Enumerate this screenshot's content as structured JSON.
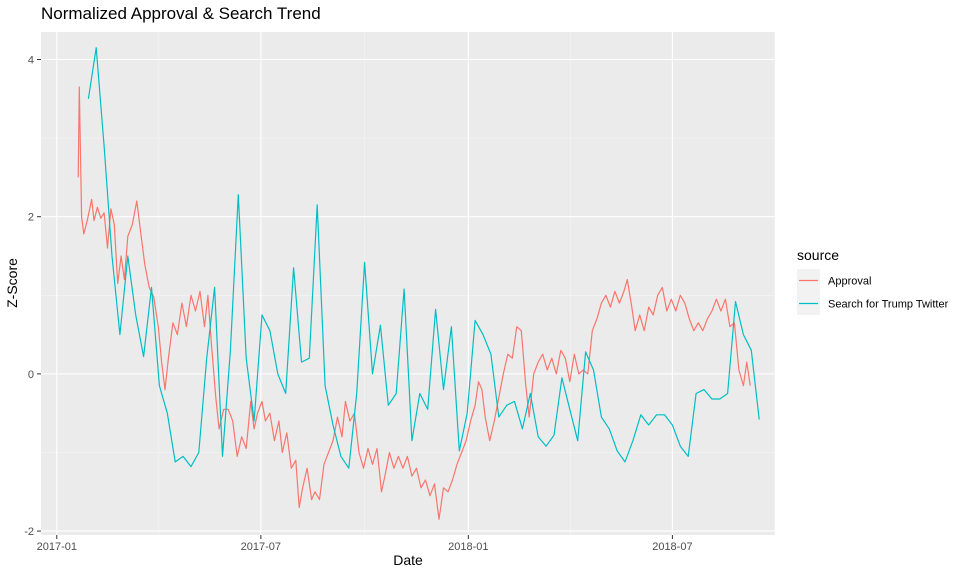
{
  "chart_data": {
    "type": "line",
    "title": "Normalized Approval & Search Trend",
    "xlabel": "Date",
    "ylabel": "Z-Score",
    "xlim": [
      "2016-12-18",
      "2018-09-30"
    ],
    "ylim": [
      -2.05,
      4.35
    ],
    "x_ticks": [
      {
        "date": "2017-01-01",
        "label": "2017-01"
      },
      {
        "date": "2017-07-01",
        "label": "2017-07"
      },
      {
        "date": "2018-01-01",
        "label": "2018-01"
      },
      {
        "date": "2018-07-01",
        "label": "2018-07"
      }
    ],
    "y_ticks": [
      -2,
      0,
      2,
      4
    ],
    "grid": true,
    "legend": {
      "title": "source",
      "position": "right"
    },
    "series": [
      {
        "name": "Approval",
        "color": "#F8766D",
        "points": [
          [
            "2017-01-20",
            2.5
          ],
          [
            "2017-01-21",
            3.65
          ],
          [
            "2017-01-23",
            2.0
          ],
          [
            "2017-01-25",
            1.78
          ],
          [
            "2017-01-28",
            1.95
          ],
          [
            "2017-02-01",
            2.22
          ],
          [
            "2017-02-03",
            1.95
          ],
          [
            "2017-02-06",
            2.12
          ],
          [
            "2017-02-09",
            1.98
          ],
          [
            "2017-02-12",
            2.05
          ],
          [
            "2017-02-15",
            1.6
          ],
          [
            "2017-02-18",
            2.1
          ],
          [
            "2017-02-21",
            1.9
          ],
          [
            "2017-02-24",
            1.15
          ],
          [
            "2017-02-27",
            1.5
          ],
          [
            "2017-03-02",
            1.2
          ],
          [
            "2017-03-05",
            1.75
          ],
          [
            "2017-03-09",
            1.9
          ],
          [
            "2017-03-13",
            2.2
          ],
          [
            "2017-03-16",
            1.85
          ],
          [
            "2017-03-20",
            1.4
          ],
          [
            "2017-03-24",
            1.1
          ],
          [
            "2017-03-28",
            0.98
          ],
          [
            "2017-04-01",
            0.6
          ],
          [
            "2017-04-04",
            0.15
          ],
          [
            "2017-04-07",
            -0.2
          ],
          [
            "2017-04-10",
            0.2
          ],
          [
            "2017-04-14",
            0.65
          ],
          [
            "2017-04-18",
            0.5
          ],
          [
            "2017-04-22",
            0.9
          ],
          [
            "2017-04-26",
            0.6
          ],
          [
            "2017-04-30",
            1.0
          ],
          [
            "2017-05-04",
            0.8
          ],
          [
            "2017-05-08",
            1.05
          ],
          [
            "2017-05-12",
            0.6
          ],
          [
            "2017-05-15",
            1.0
          ],
          [
            "2017-05-18",
            0.4
          ],
          [
            "2017-05-22",
            -0.3
          ],
          [
            "2017-05-25",
            -0.7
          ],
          [
            "2017-05-29",
            -0.45
          ],
          [
            "2017-06-02",
            -0.45
          ],
          [
            "2017-06-06",
            -0.6
          ],
          [
            "2017-06-10",
            -1.05
          ],
          [
            "2017-06-14",
            -0.8
          ],
          [
            "2017-06-18",
            -0.95
          ],
          [
            "2017-06-22",
            -0.35
          ],
          [
            "2017-06-25",
            -0.7
          ],
          [
            "2017-06-28",
            -0.5
          ],
          [
            "2017-07-02",
            -0.35
          ],
          [
            "2017-07-05",
            -0.6
          ],
          [
            "2017-07-09",
            -0.5
          ],
          [
            "2017-07-13",
            -0.85
          ],
          [
            "2017-07-17",
            -0.6
          ],
          [
            "2017-07-20",
            -1.0
          ],
          [
            "2017-07-24",
            -0.75
          ],
          [
            "2017-07-28",
            -1.2
          ],
          [
            "2017-08-01",
            -1.1
          ],
          [
            "2017-08-04",
            -1.7
          ],
          [
            "2017-08-07",
            -1.45
          ],
          [
            "2017-08-11",
            -1.2
          ],
          [
            "2017-08-15",
            -1.6
          ],
          [
            "2017-08-18",
            -1.5
          ],
          [
            "2017-08-22",
            -1.6
          ],
          [
            "2017-08-26",
            -1.15
          ],
          [
            "2017-08-30",
            -1.0
          ],
          [
            "2017-09-03",
            -0.85
          ],
          [
            "2017-09-07",
            -0.55
          ],
          [
            "2017-09-11",
            -0.8
          ],
          [
            "2017-09-14",
            -0.35
          ],
          [
            "2017-09-18",
            -0.6
          ],
          [
            "2017-09-22",
            -0.5
          ],
          [
            "2017-09-26",
            -1.0
          ],
          [
            "2017-09-30",
            -1.2
          ],
          [
            "2017-10-04",
            -0.95
          ],
          [
            "2017-10-08",
            -1.15
          ],
          [
            "2017-10-12",
            -0.95
          ],
          [
            "2017-10-16",
            -1.5
          ],
          [
            "2017-10-19",
            -1.3
          ],
          [
            "2017-10-23",
            -1.0
          ],
          [
            "2017-10-27",
            -1.2
          ],
          [
            "2017-10-31",
            -1.05
          ],
          [
            "2017-11-04",
            -1.2
          ],
          [
            "2017-11-08",
            -1.05
          ],
          [
            "2017-11-12",
            -1.3
          ],
          [
            "2017-11-16",
            -1.2
          ],
          [
            "2017-11-20",
            -1.45
          ],
          [
            "2017-11-24",
            -1.35
          ],
          [
            "2017-11-28",
            -1.55
          ],
          [
            "2017-12-02",
            -1.4
          ],
          [
            "2017-12-06",
            -1.85
          ],
          [
            "2017-12-10",
            -1.45
          ],
          [
            "2017-12-14",
            -1.5
          ],
          [
            "2017-12-18",
            -1.35
          ],
          [
            "2017-12-22",
            -1.15
          ],
          [
            "2017-12-26",
            -1.0
          ],
          [
            "2017-12-30",
            -0.85
          ],
          [
            "2018-01-03",
            -0.6
          ],
          [
            "2018-01-07",
            -0.4
          ],
          [
            "2018-01-10",
            -0.1
          ],
          [
            "2018-01-13",
            -0.2
          ],
          [
            "2018-01-16",
            -0.55
          ],
          [
            "2018-01-20",
            -0.85
          ],
          [
            "2018-01-24",
            -0.6
          ],
          [
            "2018-01-28",
            -0.3
          ],
          [
            "2018-02-01",
            0.0
          ],
          [
            "2018-02-05",
            0.25
          ],
          [
            "2018-02-09",
            0.2
          ],
          [
            "2018-02-13",
            0.6
          ],
          [
            "2018-02-17",
            0.55
          ],
          [
            "2018-02-21",
            -0.15
          ],
          [
            "2018-02-24",
            -0.55
          ],
          [
            "2018-02-28",
            0.0
          ],
          [
            "2018-03-04",
            0.15
          ],
          [
            "2018-03-08",
            0.25
          ],
          [
            "2018-03-12",
            0.05
          ],
          [
            "2018-03-16",
            0.2
          ],
          [
            "2018-03-20",
            0.0
          ],
          [
            "2018-03-24",
            0.3
          ],
          [
            "2018-03-28",
            0.2
          ],
          [
            "2018-04-01",
            -0.1
          ],
          [
            "2018-04-05",
            0.25
          ],
          [
            "2018-04-09",
            0.0
          ],
          [
            "2018-04-13",
            0.05
          ],
          [
            "2018-04-17",
            0.0
          ],
          [
            "2018-04-21",
            0.55
          ],
          [
            "2018-04-25",
            0.7
          ],
          [
            "2018-04-29",
            0.9
          ],
          [
            "2018-05-03",
            1.0
          ],
          [
            "2018-05-07",
            0.85
          ],
          [
            "2018-05-11",
            1.05
          ],
          [
            "2018-05-15",
            0.9
          ],
          [
            "2018-05-19",
            1.05
          ],
          [
            "2018-05-22",
            1.2
          ],
          [
            "2018-05-26",
            0.85
          ],
          [
            "2018-05-29",
            0.55
          ],
          [
            "2018-06-02",
            0.75
          ],
          [
            "2018-06-06",
            0.55
          ],
          [
            "2018-06-10",
            0.85
          ],
          [
            "2018-06-14",
            0.75
          ],
          [
            "2018-06-18",
            1.0
          ],
          [
            "2018-06-22",
            1.1
          ],
          [
            "2018-06-26",
            0.8
          ],
          [
            "2018-06-30",
            0.95
          ],
          [
            "2018-07-04",
            0.8
          ],
          [
            "2018-07-08",
            1.0
          ],
          [
            "2018-07-12",
            0.9
          ],
          [
            "2018-07-16",
            0.7
          ],
          [
            "2018-07-20",
            0.55
          ],
          [
            "2018-07-24",
            0.65
          ],
          [
            "2018-07-28",
            0.55
          ],
          [
            "2018-08-01",
            0.7
          ],
          [
            "2018-08-05",
            0.8
          ],
          [
            "2018-08-09",
            0.95
          ],
          [
            "2018-08-13",
            0.8
          ],
          [
            "2018-08-17",
            0.95
          ],
          [
            "2018-08-21",
            0.6
          ],
          [
            "2018-08-25",
            0.65
          ],
          [
            "2018-08-29",
            0.05
          ],
          [
            "2018-09-02",
            -0.15
          ],
          [
            "2018-09-05",
            0.15
          ],
          [
            "2018-09-08",
            -0.15
          ]
        ]
      },
      {
        "name": "Search for Trump Twitter",
        "color": "#00BFC4",
        "points": [
          [
            "2017-01-29",
            3.5
          ],
          [
            "2017-02-05",
            4.15
          ],
          [
            "2017-02-12",
            2.9
          ],
          [
            "2017-02-19",
            1.5
          ],
          [
            "2017-02-26",
            0.5
          ],
          [
            "2017-03-05",
            1.5
          ],
          [
            "2017-03-12",
            0.75
          ],
          [
            "2017-03-19",
            0.22
          ],
          [
            "2017-03-26",
            1.1
          ],
          [
            "2017-04-02",
            -0.15
          ],
          [
            "2017-04-09",
            -0.5
          ],
          [
            "2017-04-16",
            -1.12
          ],
          [
            "2017-04-23",
            -1.05
          ],
          [
            "2017-04-30",
            -1.18
          ],
          [
            "2017-05-07",
            -1.0
          ],
          [
            "2017-05-14",
            0.2
          ],
          [
            "2017-05-21",
            1.1
          ],
          [
            "2017-05-28",
            -1.05
          ],
          [
            "2017-06-04",
            0.3
          ],
          [
            "2017-06-11",
            2.28
          ],
          [
            "2017-06-18",
            0.2
          ],
          [
            "2017-06-25",
            -0.6
          ],
          [
            "2017-07-02",
            0.75
          ],
          [
            "2017-07-09",
            0.55
          ],
          [
            "2017-07-16",
            0.0
          ],
          [
            "2017-07-23",
            -0.25
          ],
          [
            "2017-07-30",
            1.35
          ],
          [
            "2017-08-06",
            0.15
          ],
          [
            "2017-08-13",
            0.2
          ],
          [
            "2017-08-20",
            2.15
          ],
          [
            "2017-08-27",
            -0.15
          ],
          [
            "2017-09-03",
            -0.65
          ],
          [
            "2017-09-10",
            -1.05
          ],
          [
            "2017-09-17",
            -1.2
          ],
          [
            "2017-09-24",
            -0.25
          ],
          [
            "2017-10-01",
            1.42
          ],
          [
            "2017-10-08",
            0.0
          ],
          [
            "2017-10-15",
            0.62
          ],
          [
            "2017-10-22",
            -0.4
          ],
          [
            "2017-10-29",
            -0.25
          ],
          [
            "2017-11-05",
            1.08
          ],
          [
            "2017-11-12",
            -0.85
          ],
          [
            "2017-11-19",
            -0.25
          ],
          [
            "2017-11-26",
            -0.45
          ],
          [
            "2017-12-03",
            0.82
          ],
          [
            "2017-12-10",
            -0.2
          ],
          [
            "2017-12-17",
            0.6
          ],
          [
            "2017-12-24",
            -0.98
          ],
          [
            "2017-12-31",
            -0.5
          ],
          [
            "2018-01-07",
            0.68
          ],
          [
            "2018-01-14",
            0.5
          ],
          [
            "2018-01-21",
            0.25
          ],
          [
            "2018-01-28",
            -0.55
          ],
          [
            "2018-02-04",
            -0.4
          ],
          [
            "2018-02-11",
            -0.35
          ],
          [
            "2018-02-18",
            -0.7
          ],
          [
            "2018-02-25",
            -0.25
          ],
          [
            "2018-03-04",
            -0.8
          ],
          [
            "2018-03-11",
            -0.92
          ],
          [
            "2018-03-18",
            -0.78
          ],
          [
            "2018-03-25",
            -0.05
          ],
          [
            "2018-04-01",
            -0.45
          ],
          [
            "2018-04-08",
            -0.85
          ],
          [
            "2018-04-15",
            0.28
          ],
          [
            "2018-04-22",
            0.05
          ],
          [
            "2018-04-29",
            -0.55
          ],
          [
            "2018-05-06",
            -0.7
          ],
          [
            "2018-05-13",
            -0.98
          ],
          [
            "2018-05-20",
            -1.12
          ],
          [
            "2018-05-27",
            -0.85
          ],
          [
            "2018-06-03",
            -0.52
          ],
          [
            "2018-06-10",
            -0.65
          ],
          [
            "2018-06-17",
            -0.52
          ],
          [
            "2018-06-24",
            -0.52
          ],
          [
            "2018-07-01",
            -0.65
          ],
          [
            "2018-07-08",
            -0.92
          ],
          [
            "2018-07-15",
            -1.05
          ],
          [
            "2018-07-22",
            -0.25
          ],
          [
            "2018-07-29",
            -0.2
          ],
          [
            "2018-08-05",
            -0.32
          ],
          [
            "2018-08-12",
            -0.32
          ],
          [
            "2018-08-19",
            -0.25
          ],
          [
            "2018-08-26",
            0.92
          ],
          [
            "2018-09-02",
            0.5
          ],
          [
            "2018-09-09",
            0.3
          ],
          [
            "2018-09-16",
            -0.58
          ]
        ]
      }
    ]
  }
}
